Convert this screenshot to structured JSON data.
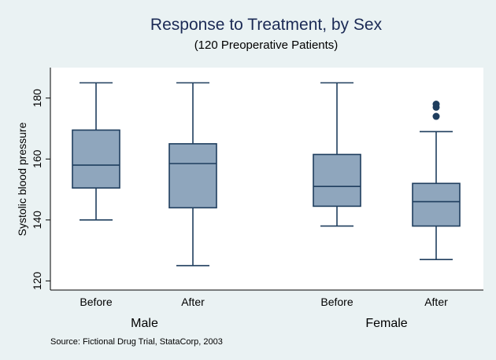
{
  "chart_data": {
    "type": "box",
    "title": "Response to Treatment, by Sex",
    "subtitle": "(120 Preoperative Patients)",
    "ylabel": "Systolic blood pressure",
    "ylim": [
      117,
      190
    ],
    "yticks": [
      120,
      140,
      160,
      180
    ],
    "note": "Source:  Fictional Drug Trial, StataCorp, 2003",
    "groups": [
      {
        "label": "Male",
        "boxes": [
          {
            "label": "Before",
            "min": 140,
            "q1": 150.5,
            "median": 158,
            "q3": 169.5,
            "max": 185,
            "outliers": []
          },
          {
            "label": "After",
            "min": 125,
            "q1": 144,
            "median": 158.5,
            "q3": 165,
            "max": 185,
            "outliers": []
          }
        ]
      },
      {
        "label": "Female",
        "boxes": [
          {
            "label": "Before",
            "min": 138,
            "q1": 144.5,
            "median": 151,
            "q3": 161.5,
            "max": 185,
            "outliers": []
          },
          {
            "label": "After",
            "min": 127,
            "q1": 138,
            "median": 146,
            "q3": 152,
            "max": 169,
            "outliers": [
              174,
              177,
              178
            ]
          }
        ]
      }
    ],
    "colors": {
      "background": "#eaf2f3",
      "plot_background": "#ffffff",
      "box_fill": "#8fa6bd",
      "line": "#1f3e5e",
      "title": "#1b2a55"
    }
  }
}
